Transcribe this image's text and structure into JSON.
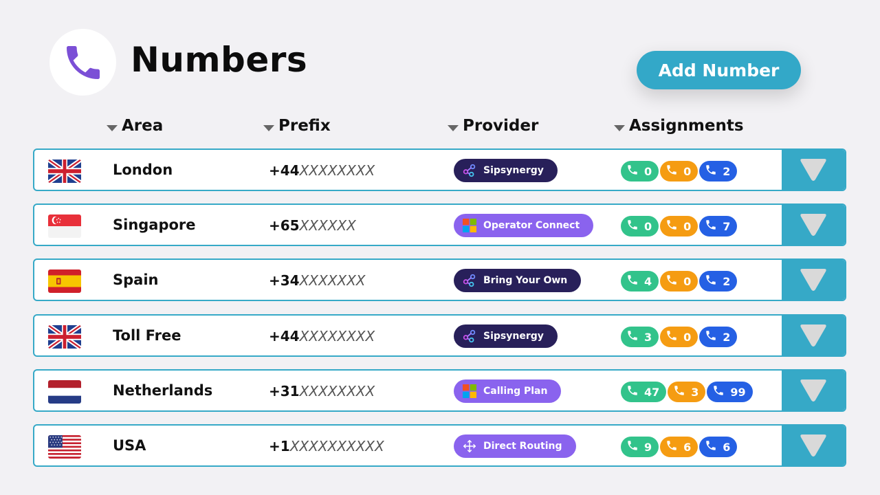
{
  "header": {
    "title": "Numbers",
    "add_button_label": "Add Number",
    "logo_icon": "phone-icon",
    "logo_color": "#7b4fd6"
  },
  "columns": [
    "Area",
    "Prefix",
    "Provider",
    "Assignments"
  ],
  "colors": {
    "accent": "#33a8c8",
    "provider_dark": "#28205a",
    "provider_purple": "#8a63ee",
    "assign_green": "#32c38b",
    "assign_orange": "#f59c12",
    "assign_blue": "#2560e4"
  },
  "rows": [
    {
      "area": "London",
      "flag": "uk",
      "prefix_code": "+44",
      "prefix_mask": "XXXXXXXX",
      "provider": "Sipsynergy",
      "provider_icon": "sipsynergy-icon",
      "provider_style": "dark",
      "green": "0",
      "orange": "0",
      "blue": "2"
    },
    {
      "area": "Singapore",
      "flag": "sg",
      "prefix_code": "+65",
      "prefix_mask": "XXXXXX",
      "provider": "Operator Connect",
      "provider_icon": "microsoft-icon",
      "provider_style": "purple",
      "green": "0",
      "orange": "0",
      "blue": "7"
    },
    {
      "area": "Spain",
      "flag": "es",
      "prefix_code": "+34",
      "prefix_mask": "XXXXXXX",
      "provider": "Bring Your Own",
      "provider_icon": "sipsynergy-icon",
      "provider_style": "dark",
      "green": "4",
      "orange": "0",
      "blue": "2"
    },
    {
      "area": "Toll Free",
      "flag": "uk",
      "prefix_code": "+44",
      "prefix_mask": "XXXXXXXX",
      "provider": "Sipsynergy",
      "provider_icon": "sipsynergy-icon",
      "provider_style": "dark",
      "green": "3",
      "orange": "0",
      "blue": "2"
    },
    {
      "area": "Netherlands",
      "flag": "nl",
      "prefix_code": "+31",
      "prefix_mask": "XXXXXXXX",
      "provider": "Calling Plan",
      "provider_icon": "microsoft-icon",
      "provider_style": "purple",
      "green": "47",
      "orange": "3",
      "blue": "99"
    },
    {
      "area": "USA",
      "flag": "us",
      "prefix_code": "+1",
      "prefix_mask": "XXXXXXXXXX",
      "provider": "Direct Routing",
      "provider_icon": "routing-arrows-icon",
      "provider_style": "purple",
      "green": "9",
      "orange": "6",
      "blue": "6"
    }
  ]
}
